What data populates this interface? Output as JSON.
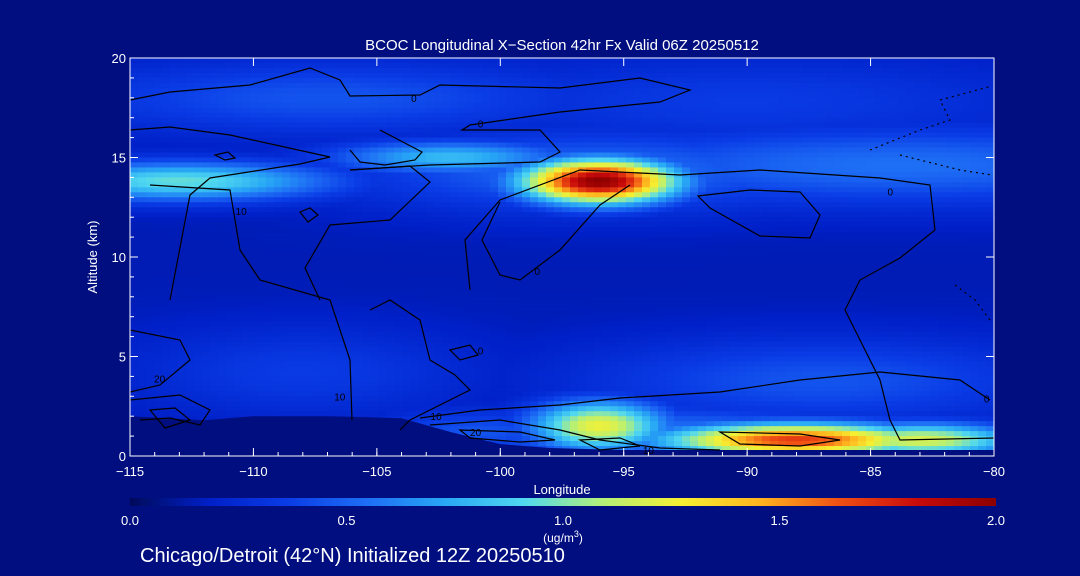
{
  "colors": {
    "background": "#000e80",
    "text": "#ffffff",
    "contour": "#000000"
  },
  "colormap": [
    "#000a5a",
    "#0020c8",
    "#0a3ce6",
    "#1e6ef5",
    "#28a8f5",
    "#50d8f0",
    "#b4f078",
    "#f5f032",
    "#ffb41e",
    "#f05014",
    "#c80a0a",
    "#8c0000"
  ],
  "chart_data": {
    "type": "heatmap",
    "title": "BCOC Longitudinal X−Section 42hr  Fx Valid 06Z 20250512",
    "xlabel": "Longitude",
    "ylabel": "Altitude (km)",
    "xlim": [
      -115,
      -80
    ],
    "ylim": [
      0,
      20
    ],
    "x_ticks": [
      -115,
      -110,
      -105,
      -100,
      -95,
      -90,
      -85,
      -80
    ],
    "x_tick_labels": [
      "−115",
      "−110",
      "−105",
      "−100",
      "−95",
      "−90",
      "−85",
      "−80"
    ],
    "y_ticks": [
      0,
      5,
      10,
      15,
      20
    ],
    "y_tick_labels": [
      "0",
      "5",
      "10",
      "15",
      "20"
    ],
    "colorbar": {
      "min": 0.0,
      "max": 2.0,
      "ticks": [
        0.0,
        0.5,
        1.0,
        1.5,
        2.0
      ],
      "tick_labels": [
        "0.0",
        "0.5",
        "1.0",
        "1.5",
        "2.0"
      ],
      "unit_label": "(ug/m",
      "unit_superscript": "3",
      "unit_close": ")"
    },
    "background_level": 0.15,
    "features": [
      {
        "lon": -113,
        "alt": 13.8,
        "lon_sd": 4.5,
        "alt_sd": 0.7,
        "value": 0.95
      },
      {
        "lon": -102,
        "alt": 15.0,
        "lon_sd": 3.5,
        "alt_sd": 0.6,
        "value": 0.8
      },
      {
        "lon": -96,
        "alt": 13.8,
        "lon_sd": 2.3,
        "alt_sd": 0.8,
        "value": 2.0
      },
      {
        "lon": -96,
        "alt": 14.3,
        "lon_sd": 7,
        "alt_sd": 1.4,
        "value": 0.55
      },
      {
        "lon": -84,
        "alt": 14.6,
        "lon_sd": 10,
        "alt_sd": 1.4,
        "value": 0.55
      },
      {
        "lon": -107,
        "alt": 18.0,
        "lon_sd": 8,
        "alt_sd": 1.3,
        "value": 0.45
      },
      {
        "lon": -90,
        "alt": 17.8,
        "lon_sd": 9,
        "alt_sd": 1.6,
        "value": 0.35
      },
      {
        "lon": -87,
        "alt": 3.8,
        "lon_sd": 7,
        "alt_sd": 1.5,
        "value": 0.45
      },
      {
        "lon": -108,
        "alt": 4.2,
        "lon_sd": 5,
        "alt_sd": 1.6,
        "value": 0.35
      },
      {
        "lon": -96,
        "alt": 1.5,
        "lon_sd": 2,
        "alt_sd": 0.9,
        "value": 1.25
      },
      {
        "lon": -88,
        "alt": 0.8,
        "lon_sd": 4,
        "alt_sd": 0.6,
        "value": 1.7
      },
      {
        "lon": -83,
        "alt": 0.8,
        "lon_sd": 3,
        "alt_sd": 0.6,
        "value": 1.2
      },
      {
        "lon": -93,
        "alt": 1.0,
        "lon_sd": 6,
        "alt_sd": 1.0,
        "value": 0.6
      },
      {
        "lon": -101,
        "alt": 1.2,
        "lon_sd": 3,
        "alt_sd": 0.8,
        "value": 0.45
      }
    ],
    "terrain": [
      [
        -115,
        2.0
      ],
      [
        -112,
        1.8
      ],
      [
        -110,
        2.0
      ],
      [
        -107,
        2.0
      ],
      [
        -104,
        1.9
      ],
      [
        -102,
        1.2
      ],
      [
        -100,
        0.6
      ],
      [
        -98,
        0.4
      ],
      [
        -95,
        0.3
      ],
      [
        -90,
        0.3
      ],
      [
        -85,
        0.3
      ],
      [
        -80,
        0.3
      ]
    ],
    "contour_labels": [
      {
        "text": "0",
        "lon": -103.5,
        "alt": 18.0
      },
      {
        "text": "0",
        "lon": -100.8,
        "alt": 16.7
      },
      {
        "text": "10",
        "lon": -110.5,
        "alt": 12.3
      },
      {
        "text": "0",
        "lon": -98.5,
        "alt": 9.3
      },
      {
        "text": "0",
        "lon": -84.2,
        "alt": 13.3
      },
      {
        "text": "20",
        "lon": -113.8,
        "alt": 3.9
      },
      {
        "text": "10",
        "lon": -106.5,
        "alt": 3.0
      },
      {
        "text": "0",
        "lon": -100.8,
        "alt": 5.3
      },
      {
        "text": "10",
        "lon": -102.6,
        "alt": 2.0
      },
      {
        "text": "20",
        "lon": -101,
        "alt": 1.2
      },
      {
        "text": "10",
        "lon": -94,
        "alt": 0.3
      },
      {
        "text": "0",
        "lon": -80.3,
        "alt": 2.9
      }
    ]
  },
  "footer": {
    "caption": "Chicago/Detroit (42°N) Initialized 12Z 20250510"
  }
}
